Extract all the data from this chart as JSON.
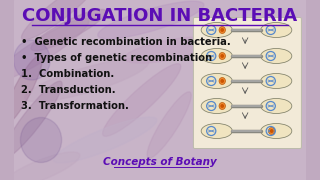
{
  "title": "CONJUGATION IN BACTERIA",
  "title_color": "#5B0DB5",
  "title_fontsize": 13,
  "bullet_points": [
    "•  Genetic recombination in bacteria.",
    "•  Types of genetic recombination",
    "1.  Combination.",
    "2.  Transduction.",
    "3.  Transformation."
  ],
  "bullet_color": "#111111",
  "bullet_fontsize": 7.2,
  "footer": "Concepts of Botany",
  "footer_color": "#5B0DB5",
  "footer_fontsize": 7.5,
  "bg_top_color": "#d4bcd4",
  "bg_bottom_color": "#b8a0b8",
  "diagram_box_color": "#f2ead8",
  "diagram_box_edge": "#bbbbaa",
  "title_underline_color": "#5B0DB5"
}
